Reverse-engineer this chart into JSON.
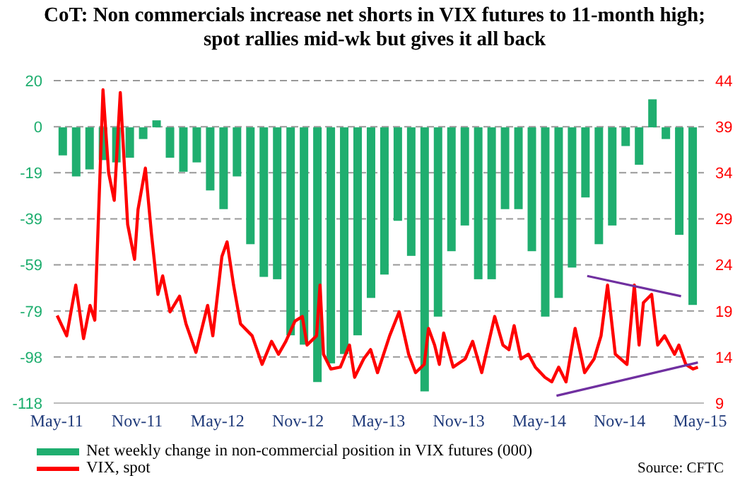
{
  "chart_data": {
    "type": "bar",
    "title": "CoT: Non commercials increase net shorts in VIX futures to 11-month high; spot rallies mid-wk but gives it all back",
    "annotations": [
      "Source: CFTC"
    ],
    "xlim": [
      "2011-04-25",
      "2015-05-10"
    ],
    "xticks": [
      {
        "value": "2011-05",
        "label": "May-11"
      },
      {
        "value": "2011-11",
        "label": "Nov-11"
      },
      {
        "value": "2012-05",
        "label": "May-12"
      },
      {
        "value": "2012-11",
        "label": "Nov-12"
      },
      {
        "value": "2013-05",
        "label": "May-13"
      },
      {
        "value": "2013-11",
        "label": "Nov-13"
      },
      {
        "value": "2014-05",
        "label": "May-14"
      },
      {
        "value": "2014-11",
        "label": "Nov-14"
      },
      {
        "value": "2015-05",
        "label": "May-15"
      }
    ],
    "ylim": [
      -118,
      20
    ],
    "yticks": [
      -118,
      {
        "value": -98.29,
        "label": "-98"
      },
      {
        "value": -78.57,
        "label": "-79"
      },
      {
        "value": -58.86,
        "label": "-59"
      },
      {
        "value": -39.14,
        "label": "-39"
      },
      {
        "value": -19.43,
        "label": "-19"
      },
      {
        "value": 0.29,
        "label": "0"
      },
      20
    ],
    "y2lim": [
      9,
      44
    ],
    "y2ticks": [
      9,
      14,
      19,
      24,
      29,
      34,
      39,
      44
    ],
    "grid": "y",
    "legend": "bottom left",
    "series": [
      {
        "name": "Net weekly change in non-commercial position in VIX futures (000)",
        "color": "#1fae6f",
        "x": [
          "2011-05-15",
          "2011-06-15",
          "2011-07-15",
          "2011-08-15",
          "2011-09-15",
          "2011-10-15",
          "2011-11-15",
          "2011-12-15",
          "2012-01-15",
          "2012-02-15",
          "2012-03-15",
          "2012-04-15",
          "2012-05-15",
          "2012-06-15",
          "2012-07-15",
          "2012-08-15",
          "2012-09-15",
          "2012-10-15",
          "2012-11-15",
          "2012-12-15",
          "2013-01-15",
          "2013-02-15",
          "2013-03-15",
          "2013-04-15",
          "2013-05-15",
          "2013-06-15",
          "2013-07-15",
          "2013-08-15",
          "2013-09-15",
          "2013-10-15",
          "2013-11-15",
          "2013-12-15",
          "2014-01-15",
          "2014-02-15",
          "2014-03-15",
          "2014-04-15",
          "2014-05-15",
          "2014-06-15",
          "2014-07-15",
          "2014-08-15",
          "2014-09-15",
          "2014-10-15",
          "2014-11-15",
          "2014-12-15",
          "2015-01-15",
          "2015-02-15",
          "2015-03-15",
          "2015-04-15"
        ],
        "values": [
          -12,
          -21,
          -18,
          -14,
          -15,
          -13,
          -5,
          3,
          -13,
          -19,
          -15,
          -27,
          -35,
          -21,
          -50,
          -64,
          -65,
          -89,
          -93,
          -109,
          -101,
          -97,
          -89,
          -73,
          -63,
          -40,
          -55,
          -113,
          -81,
          -53,
          -42,
          -65,
          -65,
          -35,
          -35,
          -53,
          -81,
          -73,
          -60,
          -30,
          -50,
          -42,
          -8,
          -16,
          12,
          -5,
          -46,
          -76
        ]
      },
      {
        "type": "line",
        "axis": "y2",
        "name": "VIX, spot",
        "color": "#ff0000",
        "x": [
          "2011-05-02",
          "2011-05-24",
          "2011-06-14",
          "2011-07-01",
          "2011-07-16",
          "2011-07-27",
          "2011-08-15",
          "2011-08-28",
          "2011-09-10",
          "2011-09-24",
          "2011-10-10",
          "2011-10-26",
          "2011-11-03",
          "2011-11-20",
          "2011-12-03",
          "2011-12-18",
          "2011-12-29",
          "2012-01-15",
          "2012-02-06",
          "2012-02-21",
          "2012-03-13",
          "2012-04-09",
          "2012-04-21",
          "2012-05-11",
          "2012-05-23",
          "2012-06-07",
          "2012-06-23",
          "2012-07-19",
          "2012-08-11",
          "2012-09-02",
          "2012-09-18",
          "2012-10-04",
          "2012-10-25",
          "2012-11-11",
          "2012-11-22",
          "2012-12-13",
          "2012-12-21",
          "2012-12-29",
          "2013-01-15",
          "2013-02-06",
          "2013-02-27",
          "2013-03-08",
          "2013-03-29",
          "2013-04-14",
          "2013-04-30",
          "2013-05-27",
          "2013-06-18",
          "2013-07-09",
          "2013-07-25",
          "2013-08-14",
          "2013-08-24",
          "2013-09-07",
          "2013-09-18",
          "2013-09-28",
          "2013-10-19",
          "2013-11-16",
          "2013-12-02",
          "2013-12-23",
          "2014-01-22",
          "2014-02-10",
          "2014-02-24",
          "2014-03-05",
          "2014-03-21",
          "2014-04-07",
          "2014-04-23",
          "2014-05-14",
          "2014-05-30",
          "2014-06-15",
          "2014-07-01",
          "2014-07-22",
          "2014-08-13",
          "2014-09-04",
          "2014-09-20",
          "2014-10-04",
          "2014-10-22",
          "2014-11-18",
          "2014-12-04",
          "2014-12-15",
          "2014-12-25",
          "2015-01-13",
          "2015-01-27",
          "2015-02-12",
          "2015-03-04",
          "2015-03-14",
          "2015-03-30",
          "2015-04-16",
          "2015-04-27"
        ],
        "values": [
          18.5,
          16.3,
          21.8,
          16,
          19.6,
          18,
          43,
          34,
          31,
          42.7,
          28.4,
          24.6,
          30,
          34.5,
          27.4,
          20.8,
          22.8,
          18.9,
          20.6,
          17.6,
          14.5,
          19.6,
          16.3,
          24.9,
          26.5,
          21.8,
          17.6,
          16.3,
          13.2,
          15.7,
          14.3,
          15.7,
          17.9,
          18.4,
          15.3,
          16.3,
          21.8,
          14.3,
          12.7,
          12.9,
          15.3,
          11.8,
          13.8,
          14.8,
          12.3,
          16.3,
          18.9,
          14.3,
          12.3,
          13.2,
          17.1,
          15.3,
          13.2,
          16.6,
          12.9,
          13.8,
          15.7,
          12.3,
          18.4,
          15.3,
          14.8,
          17.4,
          13.8,
          14.3,
          12.9,
          11.8,
          11.3,
          12.9,
          11.3,
          17.1,
          12.3,
          13.8,
          16.3,
          21.8,
          14.3,
          13.2,
          21.8,
          15.3,
          19.9,
          20.8,
          15.3,
          16.3,
          14.3,
          15.3,
          13.2,
          12.7,
          12.9
        ]
      },
      {
        "type": "line",
        "axis": "y2",
        "color": "#7030a0",
        "x": [
          "2014-08-19",
          "2015-03-19"
        ],
        "values": [
          22.8,
          20.6
        ]
      },
      {
        "type": "line",
        "axis": "y2",
        "color": "#7030a0",
        "x": [
          "2014-06-10",
          "2015-04-27"
        ],
        "values": [
          9.8,
          13.4
        ]
      }
    ]
  }
}
